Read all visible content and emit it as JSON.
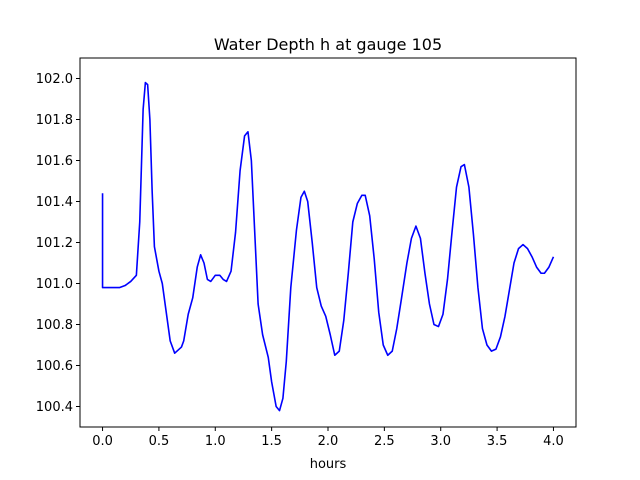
{
  "chart_data": {
    "type": "line",
    "title": "Water Depth h at gauge 105",
    "xlabel": "hours",
    "ylabel": "",
    "xlim": [
      -0.2,
      4.2
    ],
    "ylim": [
      100.3,
      102.1
    ],
    "grid": false,
    "x_ticks": [
      "0.0",
      "0.5",
      "1.0",
      "1.5",
      "2.0",
      "2.5",
      "3.0",
      "3.5",
      "4.0"
    ],
    "y_ticks": [
      "100.4",
      "100.6",
      "100.8",
      "101.0",
      "101.2",
      "101.4",
      "101.6",
      "101.8",
      "102.0"
    ],
    "series": [
      {
        "color": "#0000ff",
        "points": [
          [
            0.0,
            101.44
          ],
          [
            0.0,
            100.98
          ],
          [
            0.1,
            100.98
          ],
          [
            0.15,
            100.98
          ],
          [
            0.2,
            100.99
          ],
          [
            0.25,
            101.01
          ],
          [
            0.3,
            101.04
          ],
          [
            0.33,
            101.3
          ],
          [
            0.36,
            101.85
          ],
          [
            0.38,
            101.98
          ],
          [
            0.4,
            101.97
          ],
          [
            0.42,
            101.8
          ],
          [
            0.44,
            101.45
          ],
          [
            0.46,
            101.18
          ],
          [
            0.5,
            101.06
          ],
          [
            0.53,
            101.0
          ],
          [
            0.56,
            100.88
          ],
          [
            0.6,
            100.72
          ],
          [
            0.64,
            100.66
          ],
          [
            0.7,
            100.69
          ],
          [
            0.72,
            100.72
          ],
          [
            0.76,
            100.85
          ],
          [
            0.8,
            100.93
          ],
          [
            0.84,
            101.08
          ],
          [
            0.87,
            101.14
          ],
          [
            0.9,
            101.1
          ],
          [
            0.93,
            101.02
          ],
          [
            0.96,
            101.01
          ],
          [
            1.0,
            101.04
          ],
          [
            1.04,
            101.04
          ],
          [
            1.07,
            101.02
          ],
          [
            1.1,
            101.01
          ],
          [
            1.14,
            101.06
          ],
          [
            1.18,
            101.25
          ],
          [
            1.22,
            101.55
          ],
          [
            1.26,
            101.72
          ],
          [
            1.29,
            101.74
          ],
          [
            1.32,
            101.6
          ],
          [
            1.35,
            101.25
          ],
          [
            1.38,
            100.9
          ],
          [
            1.42,
            100.75
          ],
          [
            1.47,
            100.64
          ],
          [
            1.5,
            100.52
          ],
          [
            1.54,
            100.4
          ],
          [
            1.57,
            100.38
          ],
          [
            1.6,
            100.44
          ],
          [
            1.63,
            100.62
          ],
          [
            1.67,
            100.98
          ],
          [
            1.72,
            101.26
          ],
          [
            1.76,
            101.42
          ],
          [
            1.79,
            101.45
          ],
          [
            1.82,
            101.4
          ],
          [
            1.86,
            101.2
          ],
          [
            1.9,
            100.98
          ],
          [
            1.94,
            100.89
          ],
          [
            1.98,
            100.84
          ],
          [
            2.02,
            100.75
          ],
          [
            2.06,
            100.65
          ],
          [
            2.1,
            100.67
          ],
          [
            2.14,
            100.82
          ],
          [
            2.18,
            101.05
          ],
          [
            2.22,
            101.3
          ],
          [
            2.26,
            101.39
          ],
          [
            2.3,
            101.43
          ],
          [
            2.33,
            101.43
          ],
          [
            2.37,
            101.33
          ],
          [
            2.41,
            101.12
          ],
          [
            2.45,
            100.86
          ],
          [
            2.49,
            100.7
          ],
          [
            2.53,
            100.65
          ],
          [
            2.57,
            100.67
          ],
          [
            2.61,
            100.78
          ],
          [
            2.65,
            100.92
          ],
          [
            2.7,
            101.1
          ],
          [
            2.74,
            101.22
          ],
          [
            2.78,
            101.28
          ],
          [
            2.82,
            101.22
          ],
          [
            2.86,
            101.05
          ],
          [
            2.9,
            100.9
          ],
          [
            2.94,
            100.8
          ],
          [
            2.98,
            100.79
          ],
          [
            3.02,
            100.85
          ],
          [
            3.06,
            101.02
          ],
          [
            3.1,
            101.25
          ],
          [
            3.14,
            101.47
          ],
          [
            3.18,
            101.57
          ],
          [
            3.21,
            101.58
          ],
          [
            3.25,
            101.47
          ],
          [
            3.29,
            101.24
          ],
          [
            3.33,
            100.98
          ],
          [
            3.37,
            100.78
          ],
          [
            3.41,
            100.7
          ],
          [
            3.45,
            100.67
          ],
          [
            3.49,
            100.68
          ],
          [
            3.53,
            100.74
          ],
          [
            3.57,
            100.84
          ],
          [
            3.61,
            100.97
          ],
          [
            3.65,
            101.1
          ],
          [
            3.69,
            101.17
          ],
          [
            3.73,
            101.19
          ],
          [
            3.77,
            101.17
          ],
          [
            3.81,
            101.13
          ],
          [
            3.85,
            101.08
          ],
          [
            3.89,
            101.05
          ],
          [
            3.92,
            101.05
          ],
          [
            3.96,
            101.08
          ],
          [
            4.0,
            101.13
          ]
        ]
      }
    ]
  }
}
